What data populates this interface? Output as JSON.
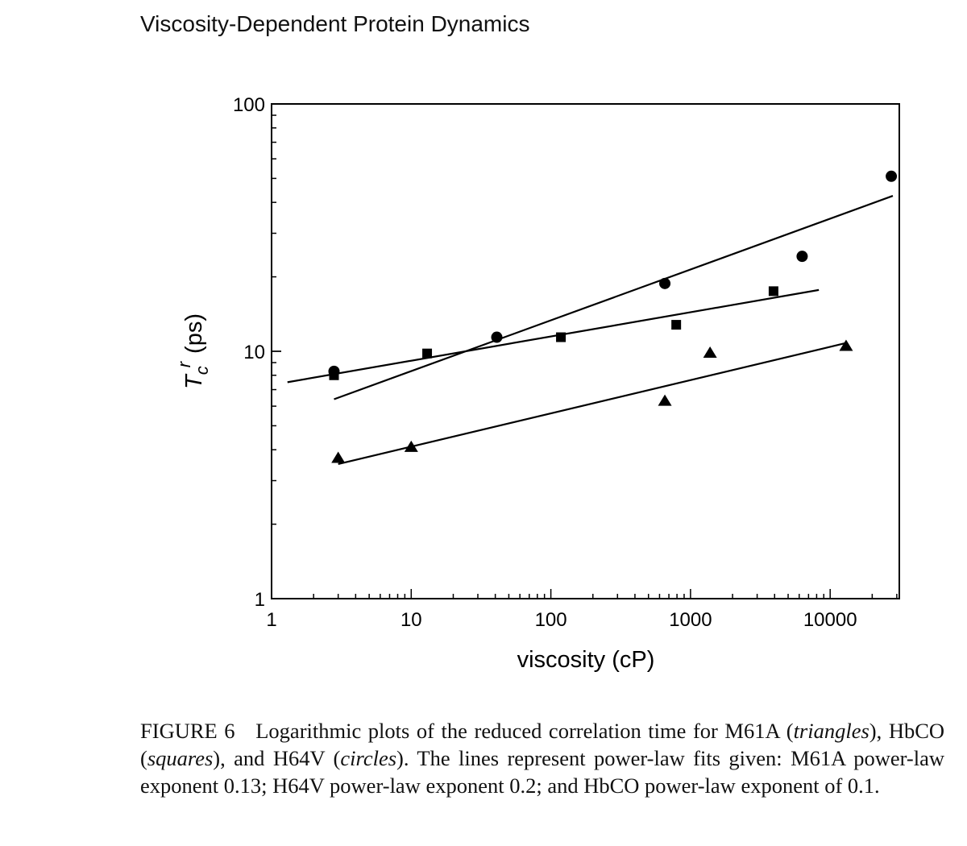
{
  "header": {
    "title": "Viscosity-Dependent Protein Dynamics"
  },
  "chart_data": {
    "type": "scatter",
    "xscale": "log",
    "yscale": "log",
    "xlabel": "viscosity (cP)",
    "ylabel_main": "T",
    "ylabel_sup": "r",
    "ylabel_sub": "c",
    "ylabel_unit": "(ps)",
    "xlim": [
      1,
      30000
    ],
    "ylim": [
      1,
      100
    ],
    "xticks": [
      1,
      10,
      100,
      1000,
      10000
    ],
    "xtick_labels": [
      "1",
      "10",
      "100",
      "1000",
      "10000"
    ],
    "yticks": [
      1,
      10,
      100
    ],
    "ytick_labels": [
      "1",
      "10",
      "100"
    ],
    "grid": false,
    "series": [
      {
        "name": "H64V",
        "marker": "circle",
        "x": [
          2.8,
          41,
          655,
          6300,
          27400
        ],
        "y": [
          8.3,
          11.4,
          18.8,
          24.2,
          51
        ],
        "fit": {
          "exponent": 0.2,
          "x": [
            2.8,
            28100
          ],
          "y": [
            6.4,
            42.5
          ]
        }
      },
      {
        "name": "HbCO",
        "marker": "square",
        "x": [
          2.8,
          13,
          118,
          790,
          3930
        ],
        "y": [
          8.0,
          9.8,
          11.4,
          12.8,
          17.5
        ],
        "fit": {
          "exponent": 0.1,
          "x": [
            1.3,
            8300
          ],
          "y": [
            7.5,
            17.7
          ]
        }
      },
      {
        "name": "M61A",
        "marker": "triangle",
        "x": [
          3.0,
          10,
          655,
          1380,
          13000
        ],
        "y": [
          3.7,
          4.1,
          6.3,
          9.85,
          10.5
        ],
        "fit": {
          "exponent": 0.13,
          "x": [
            3.0,
            13000
          ],
          "y": [
            3.5,
            10.8
          ]
        }
      }
    ]
  },
  "caption": {
    "label": "FIGURE 6",
    "t1": "Logarithmic plots of the reduced correlation time for M61A (",
    "i1": "triangles",
    "t2": "), HbCO (",
    "i2": "squares",
    "t3": "), and H64V (",
    "i3": "circles",
    "t4": "). The lines represent power-law fits given: M61A power-law exponent 0.13; H64V power-law exponent 0.2; and HbCO power-law exponent of 0.1."
  }
}
